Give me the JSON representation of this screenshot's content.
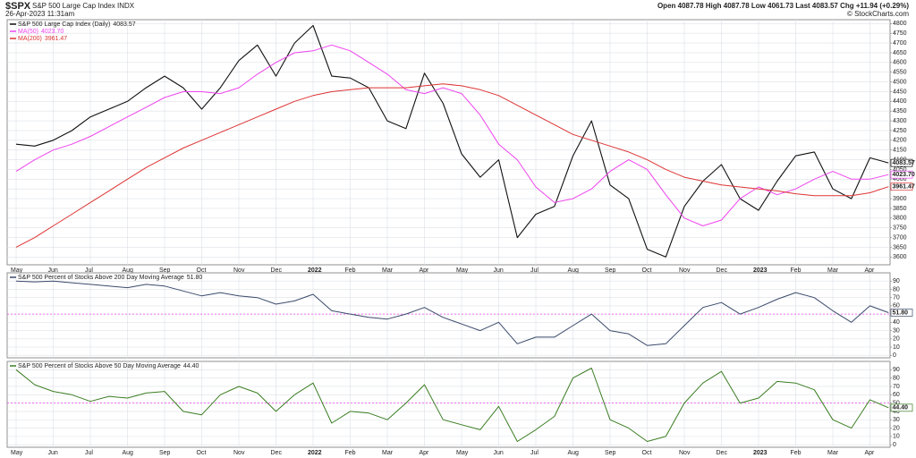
{
  "header": {
    "symbol": "$SPX",
    "name": "S&P 500 Large Cap Index INDX",
    "date": "26-Apr-2023 11:31am",
    "quote": "Open 4087.78  High 4087.78  Low 4061.73  Last 4083.57  Chg +11.94 (+0.29%)",
    "credit": "© StockCharts.com"
  },
  "chart_data": [
    {
      "type": "line",
      "grid": true,
      "show_x_labels": true,
      "categories": [
        "May",
        null,
        "Jun",
        null,
        "Jul",
        null,
        "Aug",
        null,
        "Sep",
        null,
        "Oct",
        null,
        "Nov",
        null,
        "Dec",
        null,
        "2022",
        null,
        "Feb",
        null,
        "Mar",
        null,
        "Apr",
        null,
        "May",
        null,
        "Jun",
        null,
        "Jul",
        null,
        "Aug",
        null,
        "Sep",
        null,
        "Oct",
        null,
        "Nov",
        null,
        "Dec",
        null,
        "2023",
        null,
        "Feb",
        null,
        "Mar",
        null,
        "Apr",
        null
      ],
      "ylim": [
        3560,
        4820
      ],
      "yticks": [
        3600,
        3650,
        3700,
        3750,
        3800,
        3850,
        3900,
        3950,
        4000,
        4050,
        4100,
        4150,
        4200,
        4250,
        4300,
        4350,
        4400,
        4450,
        4500,
        4550,
        4600,
        4650,
        4700,
        4750,
        4800
      ],
      "series": [
        {
          "name": "S&P 500 Large Cap Index (Daily)",
          "color": "#111111",
          "last_value_label": "4083.57",
          "values": [
            4180,
            4170,
            4200,
            4250,
            4320,
            4360,
            4400,
            4470,
            4530,
            4470,
            4360,
            4470,
            4610,
            4690,
            4530,
            4700,
            4790,
            4530,
            4520,
            4470,
            4300,
            4260,
            4545,
            4390,
            4130,
            4010,
            4100,
            3700,
            3820,
            3860,
            4120,
            4300,
            3970,
            3900,
            3640,
            3600,
            3860,
            3990,
            4075,
            3900,
            3840,
            3990,
            4120,
            4140,
            3950,
            3900,
            4110,
            4083.57
          ]
        },
        {
          "name": "MA(50)",
          "color": "#ee44ee",
          "last_value_label": "4023.70",
          "values": [
            4040,
            4100,
            4150,
            4180,
            4220,
            4270,
            4320,
            4370,
            4420,
            4450,
            4450,
            4440,
            4470,
            4540,
            4600,
            4650,
            4660,
            4690,
            4660,
            4600,
            4540,
            4460,
            4440,
            4470,
            4440,
            4330,
            4180,
            4100,
            3960,
            3880,
            3900,
            3950,
            4040,
            4100,
            4050,
            3920,
            3800,
            3760,
            3790,
            3900,
            3960,
            3920,
            3950,
            4000,
            4040,
            4000,
            4000,
            4023.7
          ]
        },
        {
          "name": "MA(200)",
          "color": "#dd3333",
          "last_value_label": "3961.47",
          "values": [
            3650,
            3700,
            3760,
            3820,
            3880,
            3940,
            4000,
            4060,
            4110,
            4160,
            4200,
            4240,
            4280,
            4320,
            4360,
            4400,
            4430,
            4450,
            4460,
            4470,
            4470,
            4470,
            4480,
            4490,
            4480,
            4460,
            4430,
            4380,
            4330,
            4280,
            4230,
            4200,
            4170,
            4140,
            4100,
            4050,
            4010,
            3990,
            3970,
            3960,
            3950,
            3940,
            3925,
            3915,
            3915,
            3915,
            3930,
            3961.47
          ]
        }
      ]
    },
    {
      "type": "line",
      "grid": true,
      "show_x_labels": false,
      "reference_line": 50,
      "categories": [
        "May",
        null,
        "Jun",
        null,
        "Jul",
        null,
        "Aug",
        null,
        "Sep",
        null,
        "Oct",
        null,
        "Nov",
        null,
        "Dec",
        null,
        "2022",
        null,
        "Feb",
        null,
        "Mar",
        null,
        "Apr",
        null,
        "May",
        null,
        "Jun",
        null,
        "Jul",
        null,
        "Aug",
        null,
        "Sep",
        null,
        "Oct",
        null,
        "Nov",
        null,
        "Dec",
        null,
        "2023",
        null,
        "Feb",
        null,
        "Mar",
        null,
        "Apr",
        null
      ],
      "ylim": [
        -3,
        100
      ],
      "yticks": [
        0,
        10,
        20,
        30,
        40,
        50,
        60,
        70,
        80,
        90
      ],
      "series": [
        {
          "name": "S&P 500 Percent of Stocks Above 200 Day Moving Average",
          "color": "#3a4a6b",
          "last_value_label": "51.80",
          "values": [
            90,
            89,
            90,
            88,
            86,
            84,
            82,
            86,
            84,
            78,
            72,
            76,
            72,
            70,
            62,
            66,
            74,
            54,
            50,
            46,
            44,
            50,
            58,
            46,
            38,
            30,
            40,
            14,
            22,
            22,
            36,
            50,
            30,
            26,
            12,
            14,
            36,
            58,
            64,
            50,
            58,
            68,
            76,
            70,
            54,
            40,
            60,
            51.8
          ]
        }
      ]
    },
    {
      "type": "line",
      "grid": true,
      "show_x_labels": true,
      "reference_line": 50,
      "categories": [
        "May",
        null,
        "Jun",
        null,
        "Jul",
        null,
        "Aug",
        null,
        "Sep",
        null,
        "Oct",
        null,
        "Nov",
        null,
        "Dec",
        null,
        "2022",
        null,
        "Feb",
        null,
        "Mar",
        null,
        "Apr",
        null,
        "May",
        null,
        "Jun",
        null,
        "Jul",
        null,
        "Aug",
        null,
        "Sep",
        null,
        "Oct",
        null,
        "Nov",
        null,
        "Dec",
        null,
        "2023",
        null,
        "Feb",
        null,
        "Mar",
        null,
        "Apr",
        null
      ],
      "ylim": [
        -3,
        100
      ],
      "yticks": [
        0,
        10,
        20,
        30,
        40,
        50,
        60,
        70,
        80,
        90
      ],
      "series": [
        {
          "name": "S&P 500 Percent of Stocks Above 50 Day Moving Average",
          "color": "#3a7d22",
          "last_value_label": "44.40",
          "values": [
            90,
            72,
            64,
            60,
            52,
            58,
            56,
            62,
            64,
            40,
            36,
            60,
            70,
            62,
            40,
            60,
            74,
            26,
            40,
            38,
            30,
            50,
            72,
            30,
            24,
            18,
            46,
            4,
            18,
            34,
            80,
            92,
            30,
            20,
            4,
            10,
            50,
            74,
            88,
            50,
            56,
            76,
            74,
            66,
            30,
            20,
            54,
            44.4
          ]
        }
      ]
    }
  ]
}
